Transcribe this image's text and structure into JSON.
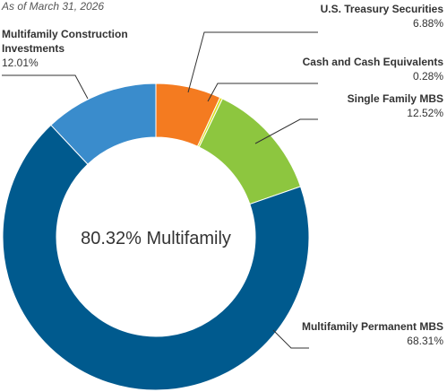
{
  "chart_data": {
    "type": "donut",
    "subtitle": "As of March 31, 2026",
    "center_label": "80.32% Multifamily",
    "categories": [
      "U.S. Treasury Securities",
      "Cash and Cash Equivalents",
      "Single Family MBS",
      "Multifamily Permanent MBS",
      "Multifamily Construction Investments"
    ],
    "values": [
      6.88,
      0.28,
      12.52,
      68.31,
      12.01
    ],
    "value_labels": [
      "6.88%",
      "0.28%",
      "12.52%",
      "68.31%",
      "12.01%"
    ],
    "colors": [
      "#f47b20",
      "#d9e021",
      "#8dc63f",
      "#005a8e",
      "#3a8ccc"
    ]
  }
}
